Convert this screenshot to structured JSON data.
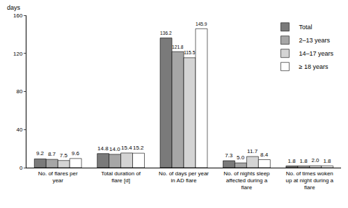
{
  "chart_data": {
    "type": "bar",
    "y_label": "days",
    "categories": [
      "No. of flares per year",
      "Total duration of flare [d]",
      "No. of days per year in AD flare",
      "No. of nights sleep affected during a flare",
      "No. of times woken up at night during a flare"
    ],
    "series": [
      {
        "name": "Total",
        "color": "#7a7a7a",
        "values": [
          9.2,
          14.8,
          136.2,
          7.3,
          1.8
        ],
        "value_labels": [
          "9.2",
          "14.8",
          "136.2",
          "7.3",
          "1.8"
        ]
      },
      {
        "name": "2–13 years",
        "color": "#a6a6a6",
        "values": [
          8.7,
          14.0,
          121.8,
          5.0,
          1.8
        ],
        "value_labels": [
          "8.7",
          "14.0",
          "121.8",
          "5.0",
          "1.8"
        ]
      },
      {
        "name": "14–17 years",
        "color": "#d4d4d4",
        "values": [
          7.5,
          15.4,
          115.5,
          11.7,
          2.0
        ],
        "value_labels": [
          "7.5",
          "15.4",
          "115.5",
          "11.7",
          "2.0"
        ]
      },
      {
        "name": "≥ 18 years",
        "color": "#ffffff",
        "values": [
          9.6,
          15.2,
          145.9,
          8.4,
          1.8
        ],
        "value_labels": [
          "9.6",
          "15.2",
          "145.9",
          "8.4",
          "1.8"
        ]
      }
    ],
    "ylim": [
      0,
      160
    ],
    "yticks": [
      0,
      40,
      80,
      120,
      160
    ],
    "grid": false,
    "legend": "top-right",
    "data_labels": true
  }
}
